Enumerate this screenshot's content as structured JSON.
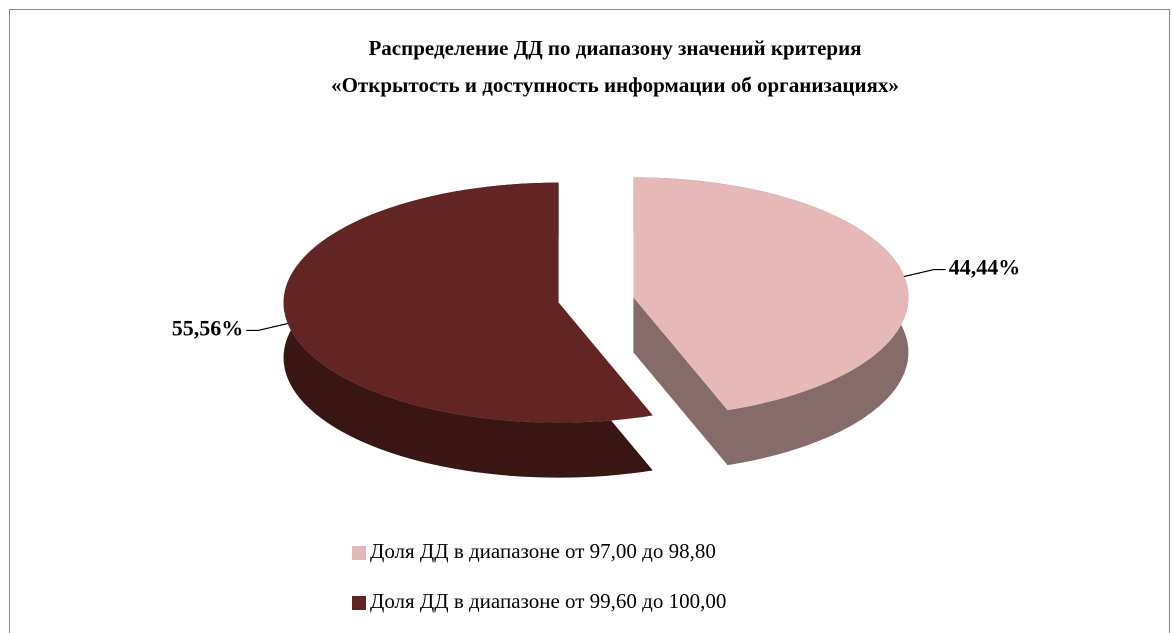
{
  "chart_data": {
    "type": "pie",
    "title": [
      "Распределение ДД по диапазону значений критерия",
      "«Открытость и доступность информации об организациях»"
    ],
    "categories": [
      "Доля ДД в диапазоне от 97,00 до 98,80",
      "Доля ДД в диапазоне от 99,60 до 100,00"
    ],
    "values": [
      44.44,
      55.56
    ],
    "value_labels": [
      "44,44%",
      "55,56%"
    ],
    "colors": [
      "#e6b8b7",
      "#632523"
    ],
    "legend": "bottom"
  }
}
